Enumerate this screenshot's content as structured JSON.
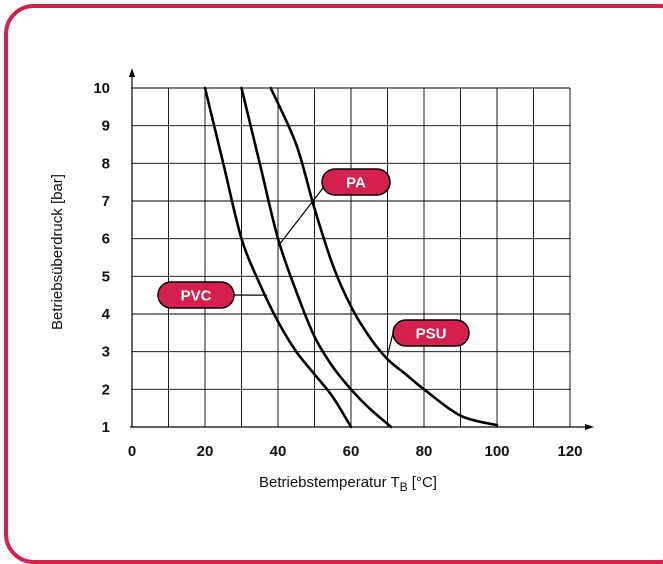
{
  "colors": {
    "accent": "#d5204e",
    "curve": "#000000",
    "grid": "#000000"
  },
  "chart_data": {
    "type": "line",
    "xlabel": "Betriebstemperatur T",
    "xlabel_subscript": "B",
    "xlabel_unit": " [°C]",
    "ylabel": "Betriebsüberdruck [bar]",
    "xlim": [
      0,
      120
    ],
    "ylim": [
      1,
      10
    ],
    "xticks": [
      0,
      20,
      40,
      60,
      80,
      100,
      120
    ],
    "yticks": [
      1,
      2,
      3,
      4,
      5,
      6,
      7,
      8,
      9,
      10
    ],
    "grid": true,
    "series": [
      {
        "name": "PVC",
        "points": [
          [
            20,
            10
          ],
          [
            25,
            8
          ],
          [
            30,
            6
          ],
          [
            35,
            4.8
          ],
          [
            40,
            3.8
          ],
          [
            45,
            3.0
          ],
          [
            50,
            2.4
          ],
          [
            55,
            1.8
          ],
          [
            60,
            1.0
          ]
        ],
        "label_value": [
          37,
          4.5
        ]
      },
      {
        "name": "PA",
        "points": [
          [
            30,
            10
          ],
          [
            35,
            8
          ],
          [
            40,
            6
          ],
          [
            45,
            4.6
          ],
          [
            50,
            3.4
          ],
          [
            55,
            2.6
          ],
          [
            60,
            2.0
          ],
          [
            65,
            1.5
          ],
          [
            71,
            1.0
          ]
        ],
        "label_value": [
          40,
          5.8
        ]
      },
      {
        "name": "PSU",
        "points": [
          [
            38,
            10
          ],
          [
            45,
            8.5
          ],
          [
            50,
            6.8
          ],
          [
            55,
            5.3
          ],
          [
            60,
            4.2
          ],
          [
            65,
            3.4
          ],
          [
            70,
            2.8
          ],
          [
            75,
            2.4
          ],
          [
            80,
            2.0
          ],
          [
            90,
            1.3
          ],
          [
            100,
            1.05
          ]
        ],
        "label_value": [
          70,
          2.9
        ]
      }
    ]
  }
}
